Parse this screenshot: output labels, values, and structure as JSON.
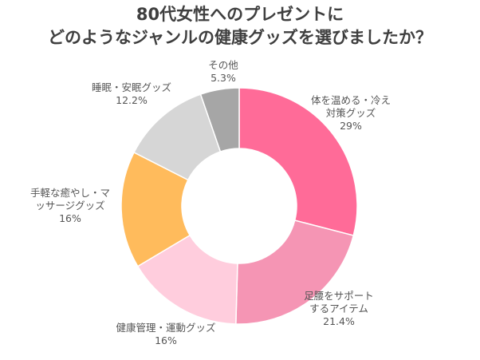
{
  "title_lines": [
    "80代女性へのプレゼントに",
    "どのようなジャンルの健康グッズを選びましたか？"
  ],
  "chart_data": {
    "type": "pie",
    "donut": true,
    "start_angle_deg": 0,
    "direction": "clockwise",
    "slices": [
      {
        "label_lines": [
          "体を温める・冷え",
          "対策グッズ"
        ],
        "value_text": "29%",
        "value": 29,
        "color": "#ff6b98"
      },
      {
        "label_lines": [
          "足腰をサポート",
          "するアイテム"
        ],
        "value_text": "21.4%",
        "value": 21.4,
        "color": "#f595b4"
      },
      {
        "label_lines": [
          "健康管理・運動グッズ"
        ],
        "value_text": "16%",
        "value": 16,
        "color": "#ffcddd"
      },
      {
        "label_lines": [
          "手軽な癒やし・マ",
          "ッサージグッズ"
        ],
        "value_text": "16%",
        "value": 16,
        "color": "#ffbb5c"
      },
      {
        "label_lines": [
          "睡眠・安眠グッズ"
        ],
        "value_text": "12.2%",
        "value": 12.2,
        "color": "#d6d6d6"
      },
      {
        "label_lines": [
          "その他"
        ],
        "value_text": "5.3%",
        "value": 5.3,
        "color": "#a6a6a6"
      }
    ]
  }
}
